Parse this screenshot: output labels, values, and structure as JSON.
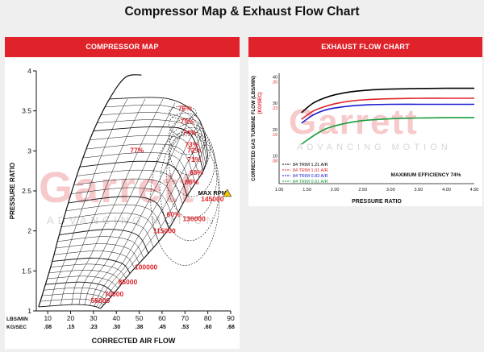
{
  "page": {
    "title": "Compressor Map & Exhaust Flow Chart"
  },
  "watermark": {
    "brand": "Garrett",
    "tagline": "ADVANCING MOTION"
  },
  "colors": {
    "header_red": "#e0232a",
    "label_red": "#e0232a",
    "ink": "#111111",
    "warning_yellow": "#f4c400"
  },
  "compressor_panel": {
    "header": "COMPRESSOR MAP"
  },
  "exhaust_panel": {
    "header": "EXHAUST FLOW CHART"
  },
  "chart_data": [
    {
      "type": "compressor_map",
      "title": "COMPRESSOR MAP",
      "xlabel": "CORRECTED AIR FLOW",
      "ylabel": "PRESSURE RATIO",
      "x_unit_rows": [
        {
          "unit": "LBS/MIN",
          "ticks": [
            "10",
            "20",
            "30",
            "40",
            "50",
            "60",
            "70",
            "80",
            "90"
          ]
        },
        {
          "unit": "KG/SEC",
          "ticks": [
            ".08",
            ".15",
            ".23",
            ".30",
            ".38",
            ".45",
            ".53",
            ".60",
            ".68"
          ]
        }
      ],
      "xlim": [
        5,
        90
      ],
      "ylim": [
        1,
        4
      ],
      "y_ticks": [
        "1",
        "1.5",
        "2",
        "2.5",
        "3",
        "3.5",
        "4"
      ],
      "surge_line": [
        [
          6,
          1.05
        ],
        [
          9,
          1.33
        ],
        [
          12,
          1.62
        ],
        [
          15,
          1.95
        ],
        [
          19,
          2.35
        ],
        [
          24,
          2.8
        ],
        [
          30,
          3.25
        ],
        [
          37,
          3.65
        ],
        [
          44,
          3.92
        ],
        [
          51,
          3.95
        ]
      ],
      "speed_lines": [
        {
          "label": "55000",
          "points": [
            [
              6,
              1.05
            ],
            [
              22,
              1.08
            ],
            [
              30,
              1.06
            ],
            [
              33,
              1.03
            ]
          ]
        },
        {
          "label": "70000",
          "points": [
            [
              9,
              1.33
            ],
            [
              24,
              1.36
            ],
            [
              34,
              1.32
            ],
            [
              39,
              1.22
            ]
          ]
        },
        {
          "label": "85000",
          "points": [
            [
              12,
              1.62
            ],
            [
              30,
              1.66
            ],
            [
              42,
              1.6
            ],
            [
              46,
              1.47
            ]
          ]
        },
        {
          "label": "100000",
          "points": [
            [
              15,
              1.95
            ],
            [
              36,
              2.02
            ],
            [
              49,
              1.95
            ],
            [
              54,
              1.72
            ]
          ]
        },
        {
          "label": "115000",
          "points": [
            [
              19,
              2.35
            ],
            [
              43,
              2.43
            ],
            [
              57,
              2.36
            ],
            [
              63,
              2.03
            ]
          ]
        },
        {
          "label": "130000",
          "points": [
            [
              24,
              2.8
            ],
            [
              50,
              2.87
            ],
            [
              65,
              2.8
            ],
            [
              71,
              2.44
            ]
          ]
        },
        {
          "label": "145000",
          "points": [
            [
              30,
              3.25
            ],
            [
              57,
              3.3
            ],
            [
              72,
              3.22
            ],
            [
              78,
              2.75
            ]
          ]
        },
        {
          "label": "MAX RPM",
          "points": [
            [
              37,
              3.65
            ],
            [
              63,
              3.65
            ],
            [
              76,
              3.4
            ],
            [
              80,
              2.95
            ]
          ]
        }
      ],
      "efficiency_islands": [
        "76%",
        "75%",
        "74%",
        "73%",
        "72%",
        "71%",
        "68%",
        "65%",
        "60%",
        "77%"
      ],
      "speed_labels": [
        "55000",
        "70000",
        "85000",
        "100000",
        "115000",
        "130000",
        "145000"
      ],
      "max_rpm_label": "MAX RPM",
      "grid": true
    },
    {
      "type": "line",
      "title": "EXHAUST FLOW CHART",
      "xlabel": "PRESSURE RATIO",
      "ylabel": "CORRECTED GAS TURBINE FLOW (LBS/MIN)",
      "ylabel2": "(KG/SEC)",
      "x_ticks": [
        "1.00",
        "1.50",
        "2.00",
        "2.50",
        "3.00",
        "3.50",
        "4.00",
        "4.50"
      ],
      "xlim": [
        1.0,
        4.5
      ],
      "y_ticks_lbs": [
        "40",
        "30",
        "20",
        "10"
      ],
      "y_ticks_kg": [
        ".30",
        ".23",
        ".15",
        ".08"
      ],
      "ylim": [
        0,
        42
      ],
      "series": [
        {
          "name": "84 TRIM 1.21 A/R",
          "color": "#000000",
          "x": [
            1.4,
            1.6,
            1.8,
            2.0,
            2.3,
            2.6,
            3.0,
            3.5,
            4.0,
            4.5
          ],
          "y": [
            27,
            30.5,
            32.5,
            33.8,
            35,
            35.6,
            36,
            36.2,
            36.3,
            36.3
          ]
        },
        {
          "name": "84 TRIM 1.01 A/R",
          "color": "#e0232a",
          "x": [
            1.4,
            1.6,
            1.8,
            2.0,
            2.3,
            2.6,
            3.0,
            3.5,
            4.0,
            4.5
          ],
          "y": [
            24.5,
            27.5,
            29.2,
            30.4,
            31.5,
            32,
            32.3,
            32.5,
            32.5,
            32.5
          ]
        },
        {
          "name": "84 TRIM 0.83 A/R",
          "color": "#1a1ad0",
          "x": [
            1.4,
            1.6,
            1.8,
            2.0,
            2.3,
            2.6,
            3.0,
            3.5,
            4.0,
            4.5
          ],
          "y": [
            23,
            26,
            27.8,
            28.8,
            29.6,
            30,
            30.2,
            30.2,
            30.2,
            30.2
          ]
        },
        {
          "name": "84 TRIM 0.61 A/R",
          "color": "#1a9c3c",
          "x": [
            1.4,
            1.6,
            1.8,
            2.0,
            2.3,
            2.6,
            3.0,
            3.5,
            4.0,
            4.5
          ],
          "y": [
            15,
            18,
            20.5,
            22,
            23.4,
            24.2,
            24.7,
            25,
            25.1,
            25.1
          ]
        }
      ],
      "annotation": "MAXIMUM EFFICIENCY 74%"
    }
  ]
}
